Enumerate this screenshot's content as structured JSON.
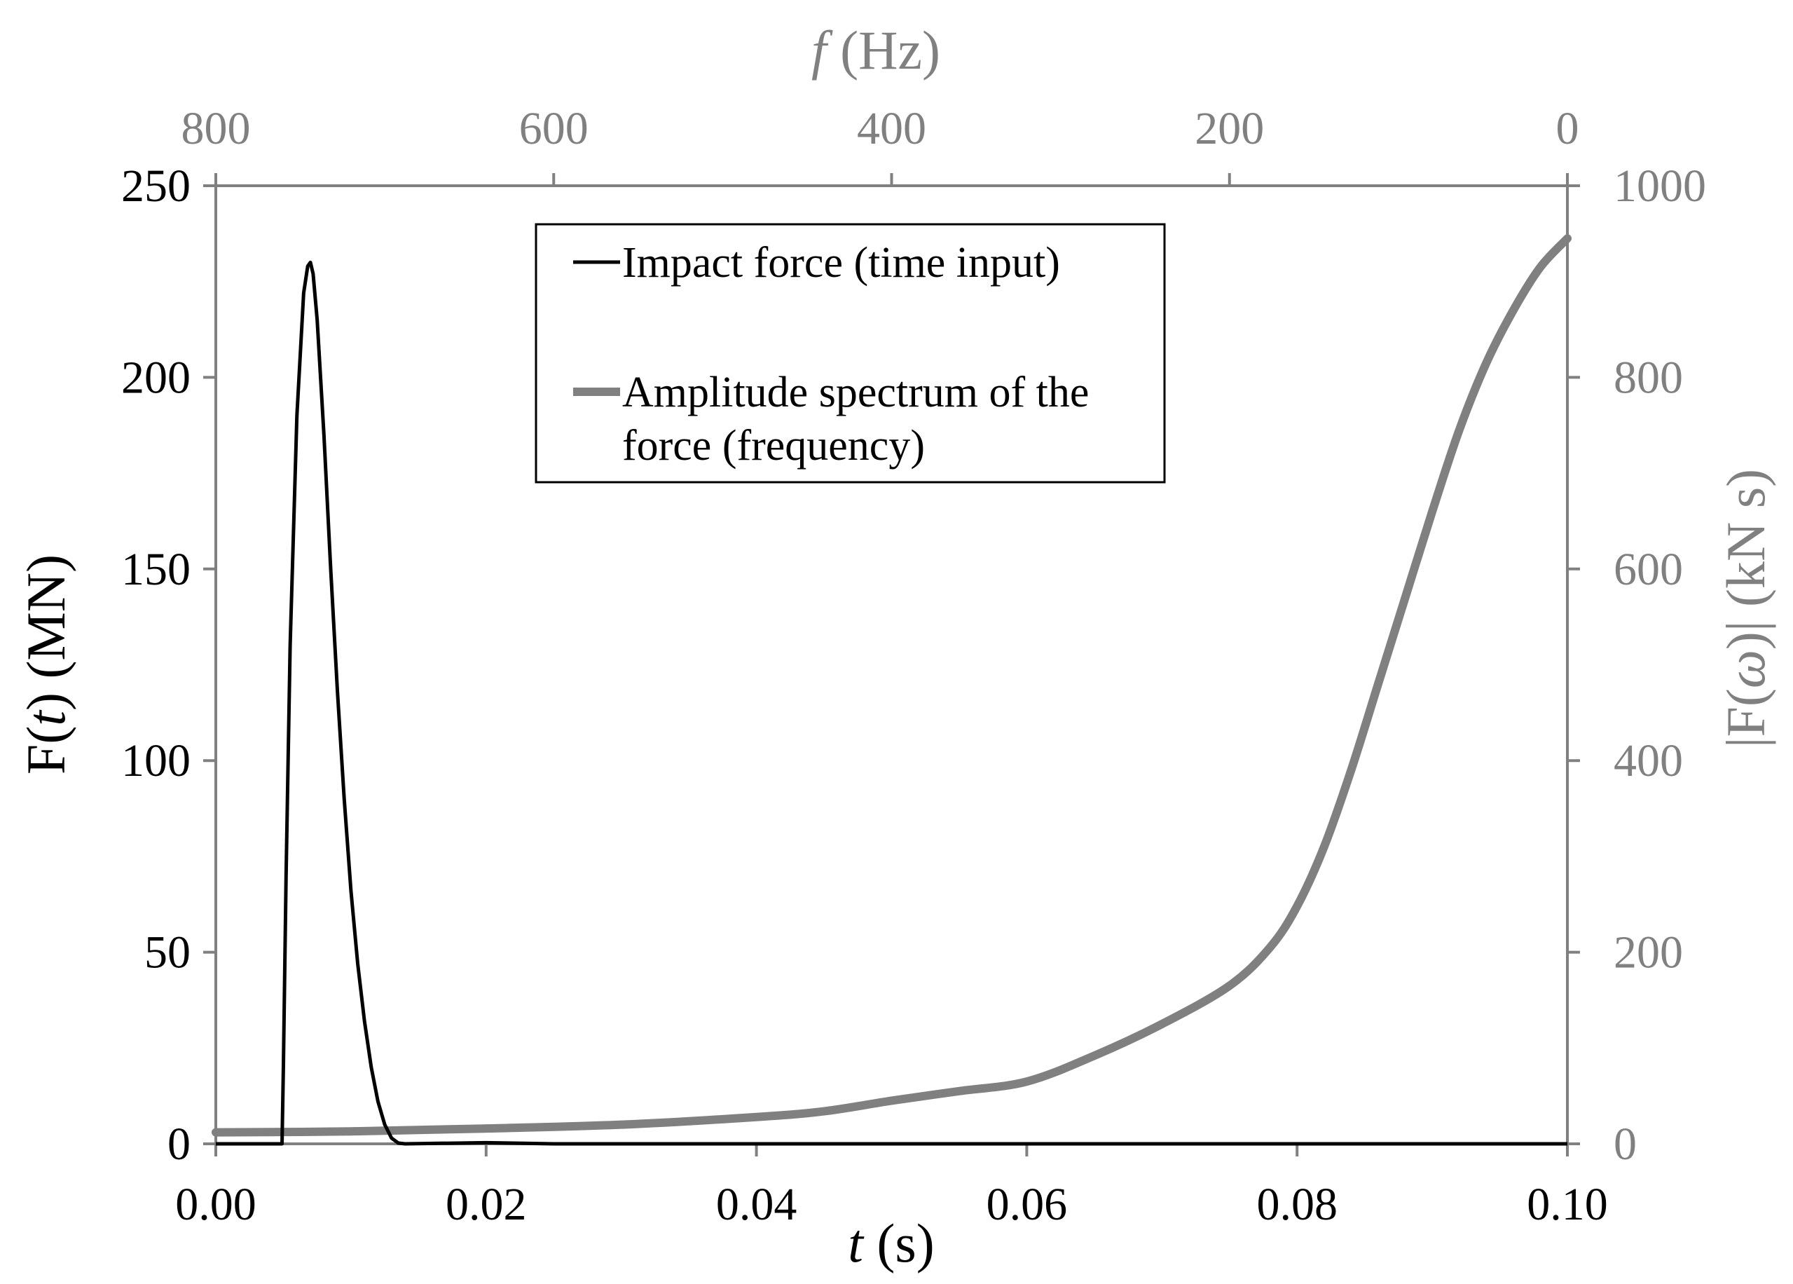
{
  "chart_data": {
    "type": "line",
    "colors": {
      "impact": "#000000",
      "spectrum": "#808080",
      "axis_left": "#000000",
      "axis_right": "#808080"
    },
    "x_bottom": {
      "label_var": "t",
      "label_unit": " (s)",
      "range": [
        0,
        0.1
      ],
      "ticks": [
        0,
        0.02,
        0.04,
        0.06,
        0.08,
        0.1
      ],
      "tick_labels": [
        "0.00",
        "0.02",
        "0.04",
        "0.06",
        "0.08",
        "0.10"
      ]
    },
    "x_top": {
      "label_var": "f",
      "label_unit": " (Hz)",
      "range": [
        800,
        0
      ],
      "ticks": [
        800,
        600,
        400,
        200,
        0
      ],
      "tick_labels": [
        "800",
        "600",
        "400",
        "200",
        "0"
      ]
    },
    "y_left": {
      "label_pre": "F(",
      "label_var": "t",
      "label_post": ") (MN)",
      "range": [
        0,
        250
      ],
      "ticks": [
        0,
        50,
        100,
        150,
        200,
        250
      ],
      "tick_labels": [
        "0",
        "50",
        "100",
        "150",
        "200",
        "250"
      ]
    },
    "y_right": {
      "label_pre": "|F(",
      "label_var": "ω",
      "label_post": ")| (kN s)",
      "range": [
        0,
        1000
      ],
      "ticks": [
        0,
        200,
        400,
        600,
        800,
        1000
      ],
      "tick_labels": [
        "0",
        "200",
        "400",
        "600",
        "800",
        "1000"
      ]
    },
    "series": [
      {
        "name": "Impact force (time input)",
        "axis": "left",
        "x": [
          0,
          0.0049,
          0.005,
          0.0052,
          0.0055,
          0.006,
          0.0065,
          0.0068,
          0.007,
          0.0072,
          0.0075,
          0.008,
          0.0085,
          0.009,
          0.0095,
          0.01,
          0.0105,
          0.011,
          0.0115,
          0.012,
          0.0125,
          0.013,
          0.0135,
          0.014,
          0.02,
          0.025,
          0.03,
          0.1
        ],
        "values": [
          0,
          0,
          20,
          70,
          130,
          190,
          222,
          229,
          230,
          227,
          215,
          185,
          150,
          118,
          90,
          66,
          47,
          32,
          20,
          11,
          5,
          1.5,
          0.2,
          0,
          0.3,
          0,
          0,
          0
        ]
      },
      {
        "name": "Amplitude spectrum of the force (frequency)",
        "legend_lines": [
          "Amplitude spectrum of the",
          "force (frequency)"
        ],
        "axis": "right",
        "x": [
          0,
          0.01,
          0.02,
          0.03,
          0.04,
          0.045,
          0.05,
          0.055,
          0.06,
          0.065,
          0.07,
          0.075,
          0.078,
          0.08,
          0.082,
          0.084,
          0.086,
          0.088,
          0.09,
          0.092,
          0.094,
          0.096,
          0.098,
          0.1
        ],
        "values": [
          12,
          13,
          16,
          20,
          28,
          34,
          45,
          55,
          65,
          92,
          125,
          165,
          205,
          248,
          310,
          390,
          480,
          570,
          660,
          745,
          815,
          870,
          915,
          945
        ]
      }
    ]
  }
}
